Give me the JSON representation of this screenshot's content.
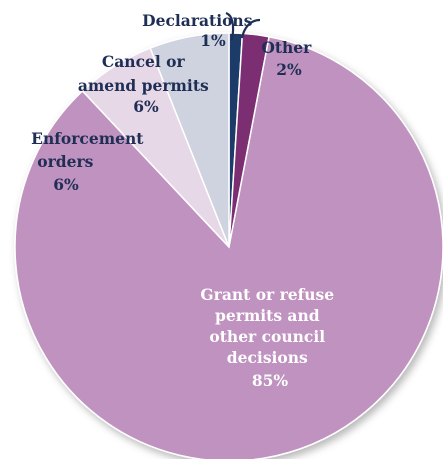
{
  "chart_data": {
    "type": "pie",
    "start_angle_deg": 0,
    "direction": "clockwise",
    "slices": [
      {
        "label": "Declarations",
        "value": 1,
        "value_label": "1%",
        "color": "#1f3a68",
        "label_placement": "outside"
      },
      {
        "label": "Other",
        "value": 2,
        "value_label": "2%",
        "color": "#7b2d73",
        "label_placement": "outside"
      },
      {
        "label": "Grant or refuse permits and other council decisions",
        "value": 85,
        "value_label": "85%",
        "color": "#bf92bf",
        "label_placement": "inside"
      },
      {
        "label": "Enforcement orders",
        "value": 6,
        "value_label": "6%",
        "color": "#e7d8e7",
        "label_placement": "outside"
      },
      {
        "label": "Cancel or amend permits",
        "value": 6,
        "value_label": "6%",
        "color": "#ced3df",
        "label_placement": "outside"
      }
    ]
  }
}
